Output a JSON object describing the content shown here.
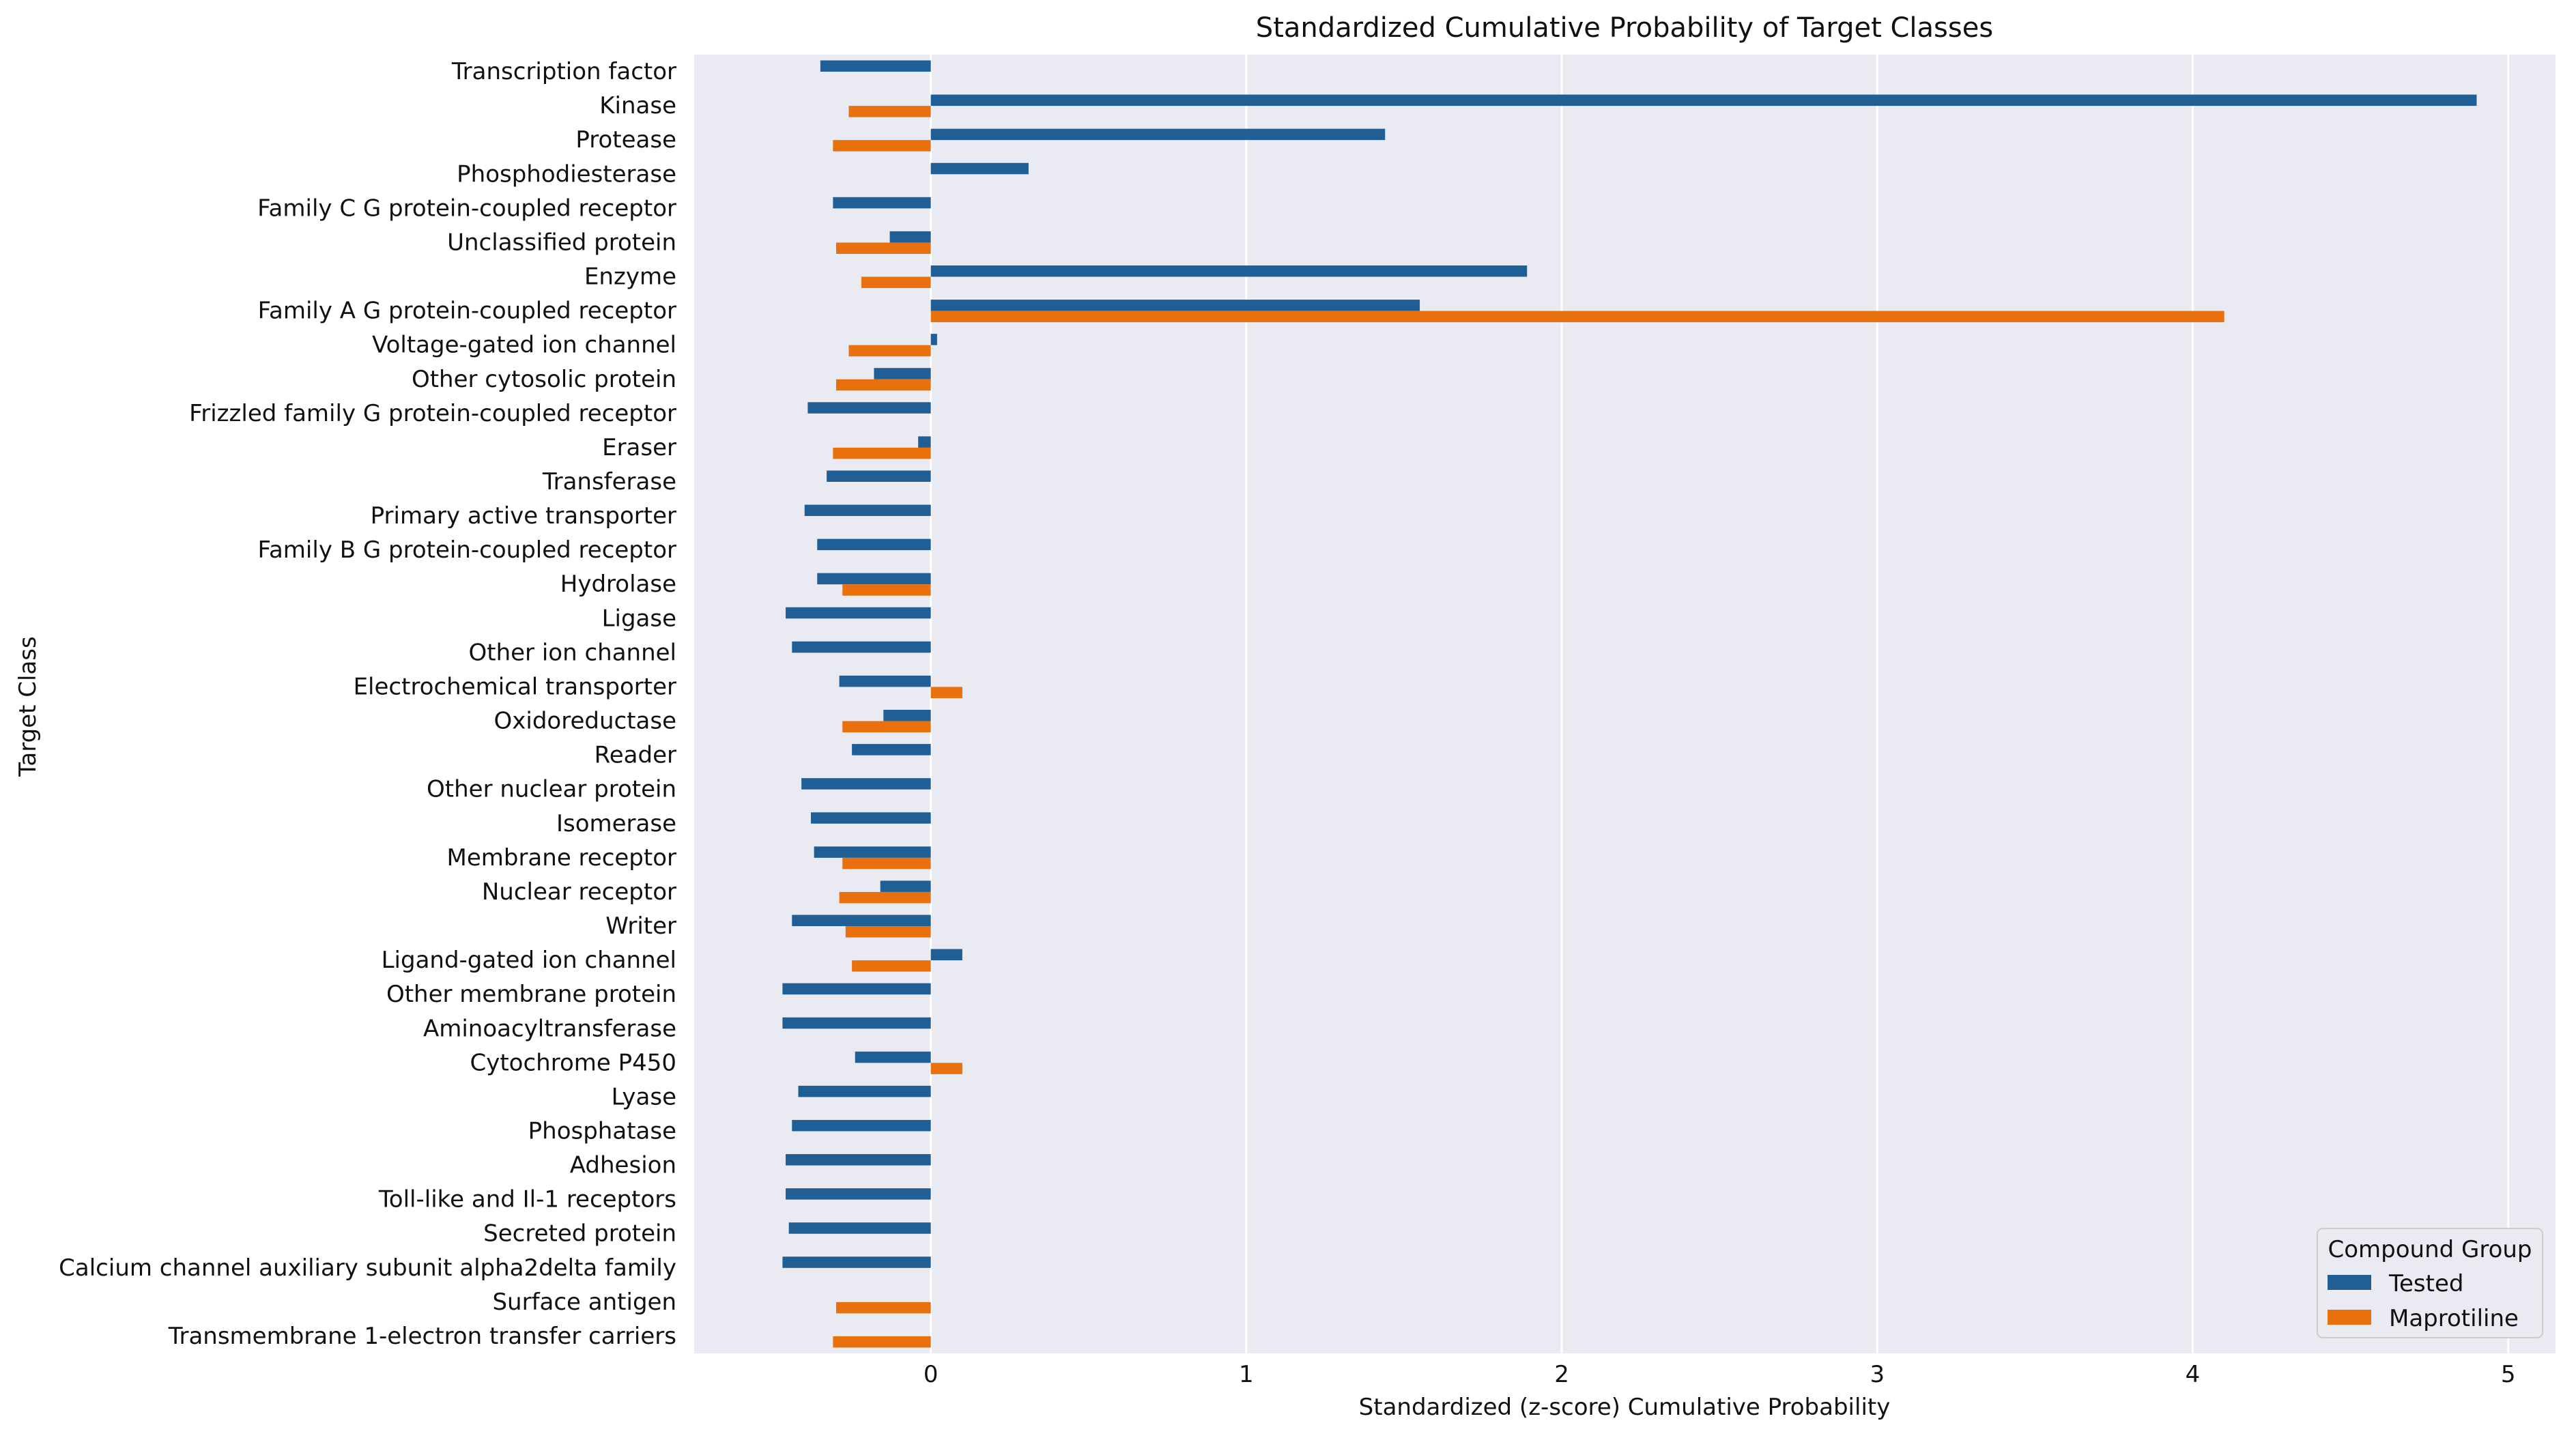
{
  "chart_data": {
    "type": "bar",
    "orientation": "horizontal",
    "title": "Standardized Cumulative Probability of Target Classes",
    "xlabel": "Standardized (z-score) Cumulative Probability",
    "ylabel": "Target Class",
    "xlim": [
      -0.75,
      5.15
    ],
    "xticks": [
      0,
      1,
      2,
      3,
      4,
      5
    ],
    "xtick_labels": [
      "0",
      "1",
      "2",
      "3",
      "4",
      "5"
    ],
    "grid": true,
    "legend": {
      "title": "Compound Group",
      "position": "bottom-right"
    },
    "categories": [
      "Transcription factor",
      "Kinase",
      "Protease",
      "Phosphodiesterase",
      "Family C G protein-coupled receptor",
      "Unclassified protein",
      "Enzyme",
      "Family A G protein-coupled receptor",
      "Voltage-gated ion channel",
      "Other cytosolic protein",
      "Frizzled family G protein-coupled receptor",
      "Eraser",
      "Transferase",
      "Primary active transporter",
      "Family B G protein-coupled receptor",
      "Hydrolase",
      "Ligase",
      "Other ion channel",
      "Electrochemical transporter",
      "Oxidoreductase",
      "Reader",
      "Other nuclear protein",
      "Isomerase",
      "Membrane receptor",
      "Nuclear receptor",
      "Writer",
      "Ligand-gated ion channel",
      "Other membrane protein",
      "Aminoacyltransferase",
      "Cytochrome P450",
      "Lyase",
      "Phosphatase",
      "Adhesion",
      "Toll-like and Il-1 receptors",
      "Secreted protein",
      "Calcium channel auxiliary subunit alpha2delta family",
      "Surface antigen",
      "Transmembrane 1-electron transfer carriers"
    ],
    "series": [
      {
        "name": "Tested",
        "color": "#1f5f96",
        "values": [
          -0.35,
          4.9,
          1.44,
          0.31,
          -0.31,
          -0.13,
          1.89,
          1.55,
          0.02,
          -0.18,
          -0.39,
          -0.04,
          -0.33,
          -0.4,
          -0.36,
          -0.36,
          -0.46,
          -0.44,
          -0.29,
          -0.15,
          -0.25,
          -0.41,
          -0.38,
          -0.37,
          -0.16,
          -0.44,
          0.1,
          -0.47,
          -0.47,
          -0.24,
          -0.42,
          -0.44,
          -0.46,
          -0.46,
          -0.45,
          -0.47,
          null,
          null
        ]
      },
      {
        "name": "Maprotiline",
        "color": "#e8710e",
        "values": [
          null,
          -0.26,
          -0.31,
          null,
          null,
          -0.3,
          -0.22,
          4.1,
          -0.26,
          -0.3,
          null,
          -0.31,
          null,
          null,
          null,
          -0.28,
          null,
          null,
          0.1,
          -0.28,
          null,
          null,
          null,
          -0.28,
          -0.29,
          -0.27,
          -0.25,
          null,
          null,
          0.1,
          null,
          null,
          null,
          null,
          null,
          null,
          -0.3,
          -0.31
        ]
      }
    ]
  }
}
